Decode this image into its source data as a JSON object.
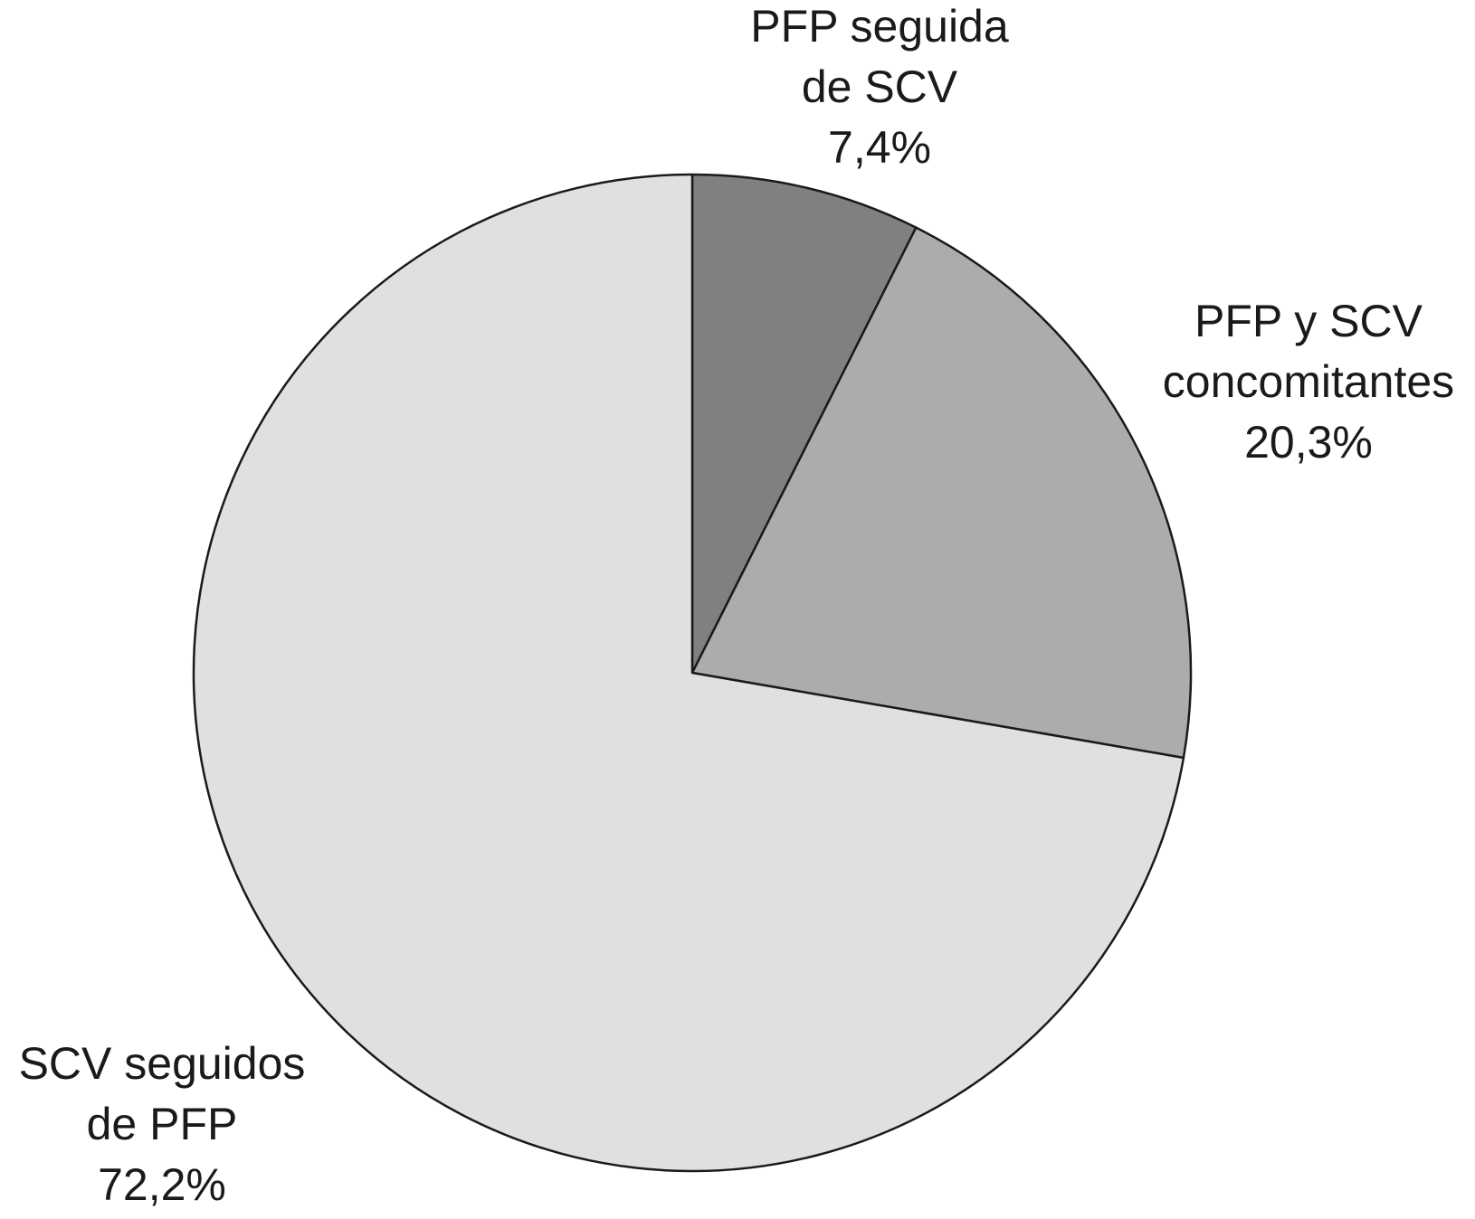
{
  "chart_data": {
    "type": "pie",
    "categories": [
      [
        "PFP seguida",
        "de SCV"
      ],
      [
        "PFP y SCV",
        "concomitantes"
      ],
      [
        "SCV seguidos",
        "de PFP"
      ]
    ],
    "values": [
      7.4,
      20.3,
      72.2
    ],
    "value_labels": [
      "7,4%",
      "20,3%",
      "72,2%"
    ],
    "colors": [
      "#808080",
      "#acacac",
      "#e0e0e0"
    ]
  }
}
